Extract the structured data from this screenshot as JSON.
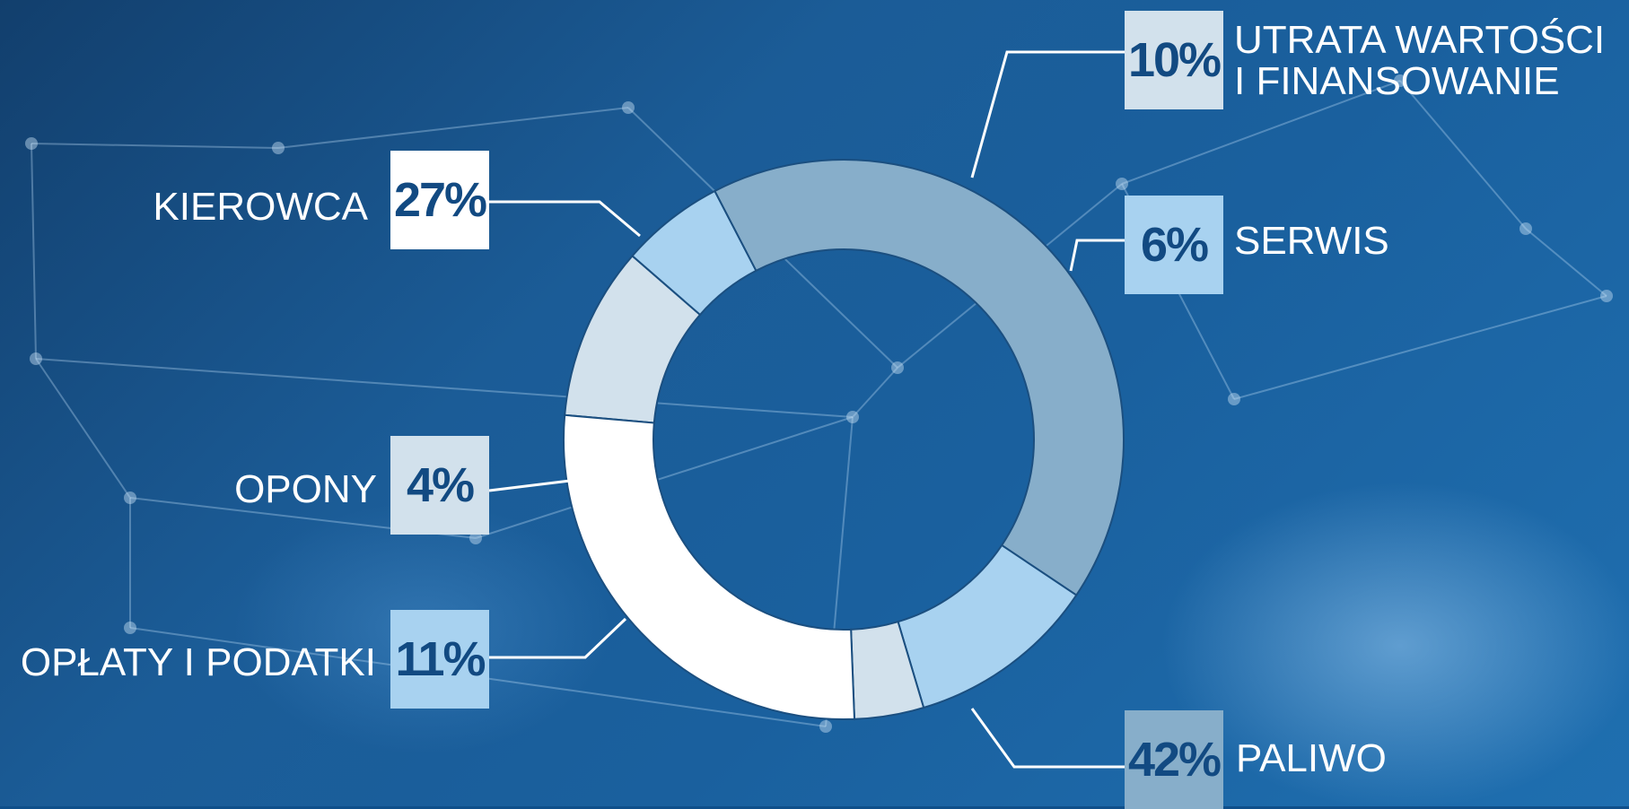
{
  "colors": {
    "kierowca": "#ffffff",
    "utrata": "#d2e1ec",
    "serwis": "#a8d2f0",
    "paliwo": "#87aeca",
    "oplaty": "#a8d2f0",
    "opony": "#d2e1ec",
    "outline": "#1b4f80",
    "connector": "#ffffff"
  },
  "chart_data": {
    "type": "pie",
    "donut": true,
    "slices": [
      {
        "key": "utrata",
        "label_line1": "UTRATA WARTOŚCI",
        "label_line2": "I FINANSOWANIE",
        "value": 10,
        "pct_text": "10%"
      },
      {
        "key": "serwis",
        "label_line1": "SERWIS",
        "label_line2": "",
        "value": 6,
        "pct_text": "6%"
      },
      {
        "key": "paliwo",
        "label_line1": "PALIWO",
        "label_line2": "",
        "value": 42,
        "pct_text": "42%"
      },
      {
        "key": "oplaty",
        "label_line1": "OPŁATY I PODATKI",
        "label_line2": "",
        "value": 11,
        "pct_text": "11%"
      },
      {
        "key": "opony",
        "label_line1": "OPONY",
        "label_line2": "",
        "value": 4,
        "pct_text": "4%"
      },
      {
        "key": "kierowca",
        "label_line1": "KIEROWCA",
        "label_line2": "",
        "value": 27,
        "pct_text": "27%"
      }
    ]
  }
}
